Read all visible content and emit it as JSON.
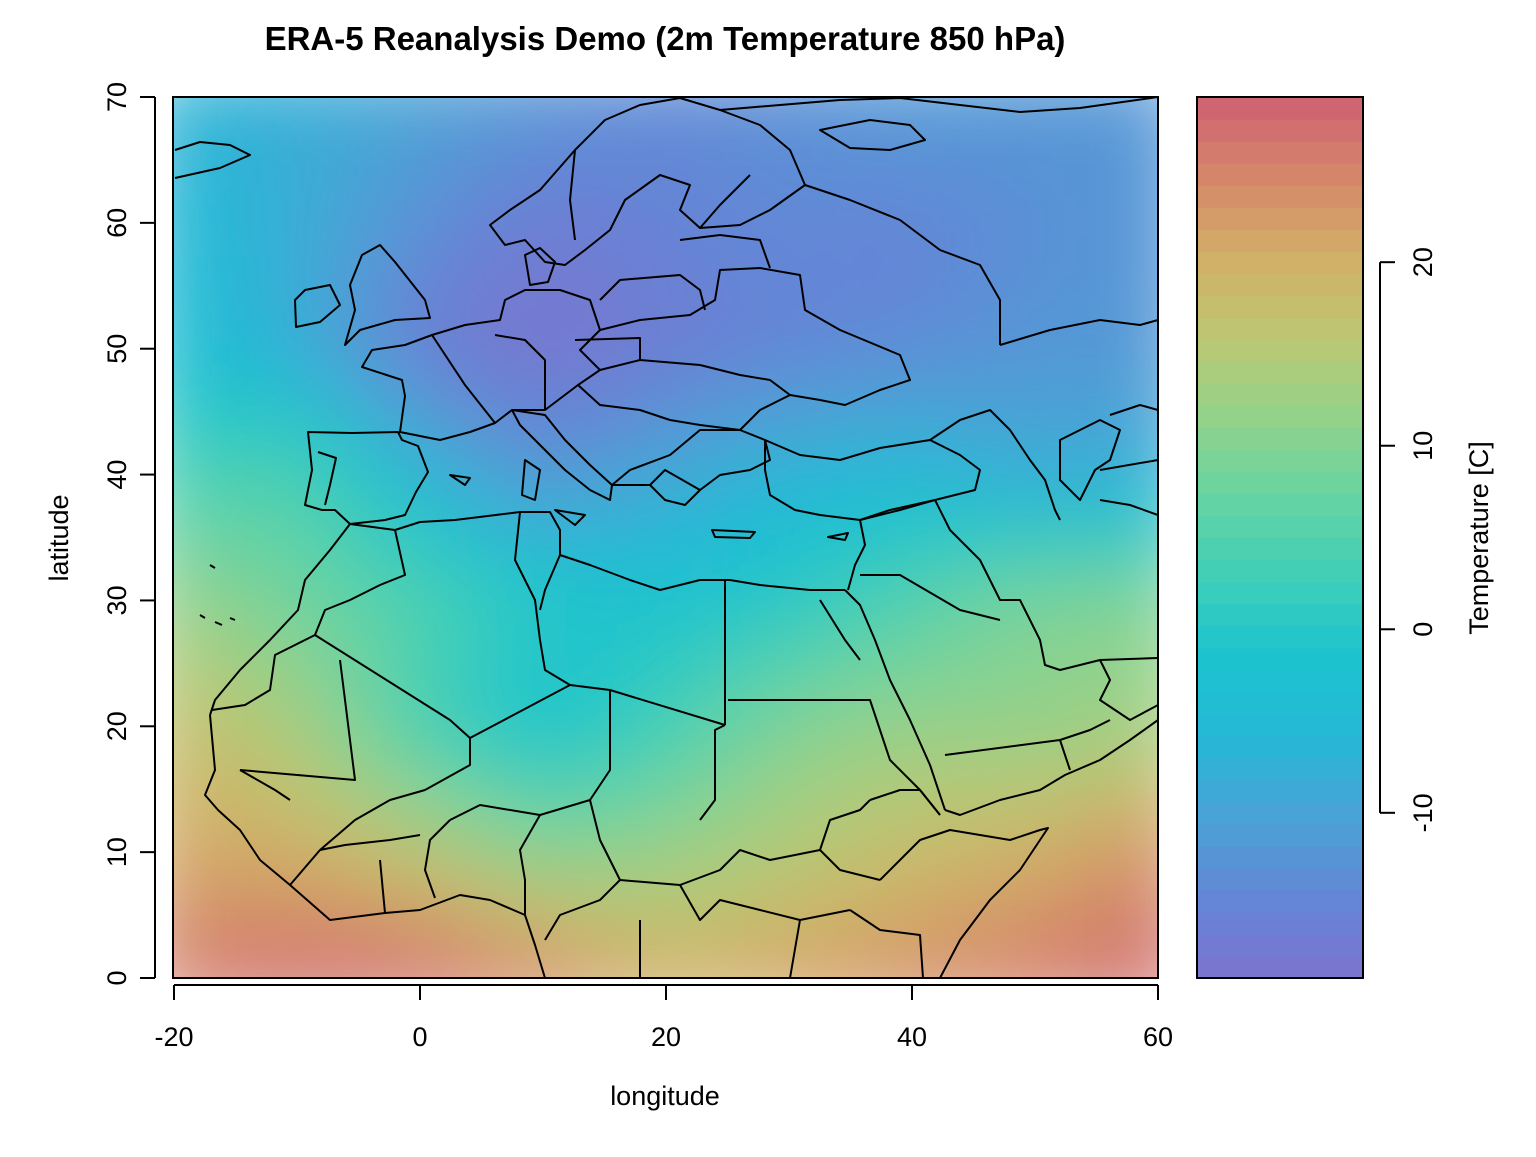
{
  "chart_data": {
    "type": "heatmap",
    "title": "ERA-5 Reanalysis Demo (2m Temperature 850 hPa)",
    "xlabel": "longitude",
    "ylabel": "latitude",
    "xlim": [
      -20,
      60
    ],
    "ylim": [
      0,
      70
    ],
    "xticks": [
      -20,
      0,
      20,
      40,
      60
    ],
    "yticks": [
      0,
      10,
      20,
      30,
      40,
      50,
      60,
      70
    ],
    "colorbar": {
      "label": "Temperature [C]",
      "range": [
        -19,
        29
      ],
      "ticks": [
        -10,
        0,
        10,
        20
      ],
      "colors": [
        "#7B74CE",
        "#6486D6",
        "#4BA2D6",
        "#25B8D6",
        "#1CC3CF",
        "#3ECFB8",
        "#66D3A3",
        "#94D28A",
        "#BBC772",
        "#D2AF66",
        "#D5876A",
        "#CE6071"
      ]
    },
    "temperature_field": {
      "lon": [
        -20,
        -10,
        0,
        10,
        20,
        30,
        40,
        50,
        60
      ],
      "lat": [
        70,
        60,
        50,
        40,
        30,
        20,
        10,
        0
      ],
      "values": [
        [
          -7,
          -8,
          -10,
          -12,
          -14,
          -13,
          -11,
          -12,
          -12
        ],
        [
          -5,
          -8,
          -13,
          -17,
          -15,
          -14,
          -15,
          -13,
          -12
        ],
        [
          -3,
          -8,
          -17,
          -19,
          -17,
          -15,
          -14,
          -12,
          -12
        ],
        [
          3,
          5,
          -6,
          -13,
          -9,
          -6,
          -5,
          -9,
          -8
        ],
        [
          12,
          8,
          5,
          0,
          -2,
          0,
          5,
          10,
          10
        ],
        [
          18,
          14,
          3,
          -3,
          3,
          10,
          12,
          11,
          13
        ],
        [
          21,
          20,
          16,
          10,
          12,
          15,
          18,
          20,
          24
        ],
        [
          26,
          28,
          28,
          25,
          20,
          22,
          24,
          26,
          28
        ]
      ]
    },
    "coastlines": "Natural Earth-style country borders for Europe, North Africa and the Middle East"
  }
}
